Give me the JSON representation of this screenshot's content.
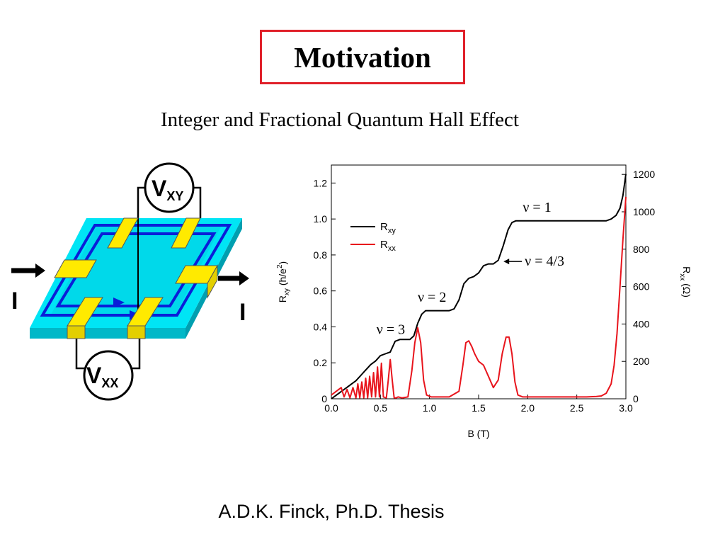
{
  "slide": {
    "title": "Motivation",
    "subtitle": "Integer and Fractional Quantum Hall Effect",
    "credit": "A.D.K. Finck,  Ph.D. Thesis"
  },
  "diagram": {
    "vxy_main": "V",
    "vxy_sub": "XY",
    "vxx_main": "V",
    "vxx_sub": "XX",
    "current_left": "I",
    "current_right": "I"
  },
  "colors": {
    "title_border": "#e0202a",
    "rxy": "#000000",
    "rxx": "#e8141c",
    "sample_top": "#00e5f5",
    "sample_side": "#00b8c8",
    "channel": "#0a1ed8",
    "contact": "#ffea00"
  },
  "chart_data": {
    "type": "line",
    "xlabel": "B (T)",
    "ylabel_left": "Rxy (h/e2)",
    "ylabel_right": "Rxx (Ω)",
    "xlim": [
      0.0,
      3.0
    ],
    "ylim_left": [
      0.0,
      1.3
    ],
    "ylim_right": [
      0,
      1250
    ],
    "xticks": [
      "0.0",
      "0.5",
      "1.0",
      "1.5",
      "2.0",
      "2.5",
      "3.0"
    ],
    "yticks_left": [
      "0",
      "0.2",
      "0.4",
      "0.6",
      "0.8",
      "1.0",
      "1.2"
    ],
    "yticks_right": [
      "0",
      "200",
      "400",
      "600",
      "800",
      "1000",
      "1200"
    ],
    "legend": [
      {
        "name": "R",
        "sub": "xy",
        "color": "#000000"
      },
      {
        "name": "R",
        "sub": "xx",
        "color": "#e8141c"
      }
    ],
    "legend_position": "upper-left",
    "annotations": [
      {
        "text": "ν = 1",
        "x": 1.95,
        "y": 1.04
      },
      {
        "text": "ν = 4/3",
        "x": 1.97,
        "y": 0.74
      },
      {
        "text": "ν = 2",
        "x": 0.88,
        "y": 0.54
      },
      {
        "text": "ν = 3",
        "x": 0.46,
        "y": 0.36
      }
    ],
    "series": [
      {
        "name": "Rxy",
        "axis": "left",
        "x": [
          0.0,
          0.05,
          0.1,
          0.15,
          0.2,
          0.25,
          0.3,
          0.35,
          0.4,
          0.45,
          0.5,
          0.55,
          0.6,
          0.65,
          0.7,
          0.75,
          0.8,
          0.84,
          0.88,
          0.92,
          0.96,
          1.0,
          1.05,
          1.1,
          1.15,
          1.2,
          1.25,
          1.3,
          1.35,
          1.4,
          1.45,
          1.5,
          1.55,
          1.6,
          1.65,
          1.7,
          1.75,
          1.8,
          1.84,
          1.88,
          1.93,
          2.0,
          2.2,
          2.4,
          2.6,
          2.7,
          2.8,
          2.85,
          2.9,
          2.94,
          2.97,
          3.0
        ],
        "y": [
          0.0,
          0.02,
          0.04,
          0.06,
          0.08,
          0.1,
          0.13,
          0.16,
          0.19,
          0.21,
          0.24,
          0.25,
          0.26,
          0.32,
          0.33,
          0.33,
          0.33,
          0.35,
          0.42,
          0.47,
          0.49,
          0.49,
          0.49,
          0.49,
          0.49,
          0.49,
          0.5,
          0.55,
          0.64,
          0.67,
          0.68,
          0.7,
          0.74,
          0.75,
          0.75,
          0.77,
          0.85,
          0.94,
          0.98,
          0.99,
          0.99,
          0.99,
          0.99,
          0.99,
          0.99,
          0.99,
          0.99,
          1.0,
          1.02,
          1.06,
          1.13,
          1.25
        ]
      },
      {
        "name": "Rxx",
        "axis": "right",
        "x": [
          0.0,
          0.05,
          0.1,
          0.13,
          0.16,
          0.19,
          0.22,
          0.25,
          0.27,
          0.29,
          0.31,
          0.33,
          0.35,
          0.37,
          0.39,
          0.41,
          0.43,
          0.45,
          0.47,
          0.49,
          0.51,
          0.53,
          0.56,
          0.58,
          0.6,
          0.62,
          0.64,
          0.66,
          0.68,
          0.72,
          0.78,
          0.82,
          0.85,
          0.88,
          0.91,
          0.94,
          0.97,
          1.02,
          1.1,
          1.2,
          1.3,
          1.34,
          1.37,
          1.4,
          1.43,
          1.46,
          1.5,
          1.55,
          1.6,
          1.65,
          1.7,
          1.74,
          1.78,
          1.81,
          1.84,
          1.87,
          1.9,
          1.95,
          2.0,
          2.2,
          2.4,
          2.6,
          2.7,
          2.75,
          2.8,
          2.85,
          2.88,
          2.91,
          2.94,
          2.97,
          3.0
        ],
        "y": [
          20,
          40,
          60,
          10,
          50,
          5,
          60,
          5,
          80,
          5,
          90,
          5,
          110,
          5,
          120,
          10,
          140,
          10,
          170,
          10,
          190,
          10,
          5,
          100,
          210,
          100,
          5,
          5,
          10,
          5,
          10,
          150,
          300,
          380,
          300,
          100,
          20,
          10,
          10,
          10,
          40,
          180,
          300,
          310,
          280,
          240,
          200,
          180,
          120,
          60,
          100,
          240,
          330,
          330,
          240,
          90,
          20,
          10,
          10,
          10,
          10,
          10,
          12,
          15,
          30,
          80,
          180,
          350,
          600,
          850,
          1080
        ]
      }
    ]
  }
}
